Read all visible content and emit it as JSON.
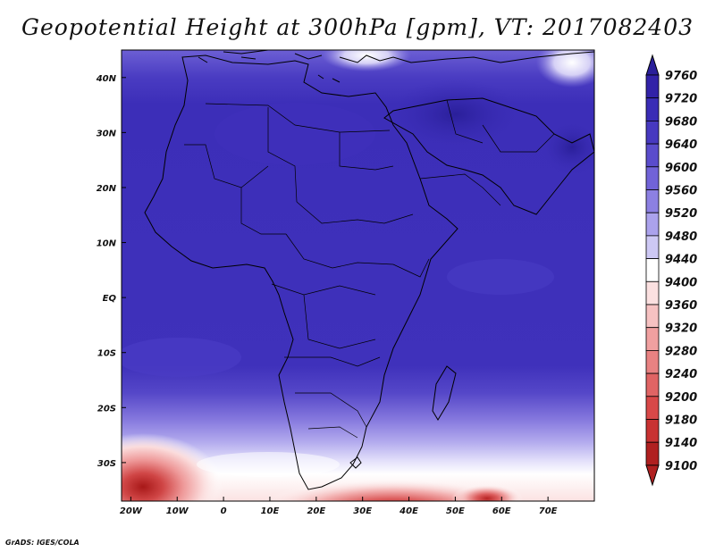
{
  "title": "Geopotential Height at 300hPa [gpm], VT: 2017082403",
  "credit": "GrADS: IGES/COLA",
  "map": {
    "lon_range": [
      -22,
      80
    ],
    "lat_range": [
      -37,
      45
    ],
    "lon_ticks": [
      {
        "value": -20,
        "label": "20W"
      },
      {
        "value": -10,
        "label": "10W"
      },
      {
        "value": 0,
        "label": "0"
      },
      {
        "value": 10,
        "label": "10E"
      },
      {
        "value": 20,
        "label": "20E"
      },
      {
        "value": 30,
        "label": "30E"
      },
      {
        "value": 40,
        "label": "40E"
      },
      {
        "value": 50,
        "label": "50E"
      },
      {
        "value": 60,
        "label": "60E"
      },
      {
        "value": 70,
        "label": "70E"
      }
    ],
    "lat_ticks": [
      {
        "value": 40,
        "label": "40N"
      },
      {
        "value": 30,
        "label": "30N"
      },
      {
        "value": 20,
        "label": "20N"
      },
      {
        "value": 10,
        "label": "10N"
      },
      {
        "value": 0,
        "label": "EQ"
      },
      {
        "value": -10,
        "label": "10S"
      },
      {
        "value": -20,
        "label": "20S"
      },
      {
        "value": -30,
        "label": "30S"
      }
    ]
  },
  "colorbar": {
    "levels": [
      {
        "label": "9760",
        "color": "#2a1f9a"
      },
      {
        "label": "9720",
        "color": "#3222a8"
      },
      {
        "label": "9680",
        "color": "#3a2cb6"
      },
      {
        "label": "9640",
        "color": "#4739c0"
      },
      {
        "label": "9600",
        "color": "#5a4ccc"
      },
      {
        "label": "9560",
        "color": "#7163d8"
      },
      {
        "label": "9520",
        "color": "#8c80e2"
      },
      {
        "label": "9480",
        "color": "#aba2ec"
      },
      {
        "label": "9440",
        "color": "#cdc8f4"
      },
      {
        "label": "9400",
        "color": "#ffffff"
      },
      {
        "label": "9360",
        "color": "#fbe0e0"
      },
      {
        "label": "9320",
        "color": "#f6c2c2"
      },
      {
        "label": "9280",
        "color": "#f0a0a0"
      },
      {
        "label": "9240",
        "color": "#e88282"
      },
      {
        "label": "9200",
        "color": "#e06464"
      },
      {
        "label": "9180",
        "color": "#d84848"
      },
      {
        "label": "9140",
        "color": "#c83232"
      },
      {
        "label": "9100",
        "color": "#b02020"
      }
    ],
    "top_color": "#2a1f9a",
    "bottom_color": "#b02020"
  }
}
